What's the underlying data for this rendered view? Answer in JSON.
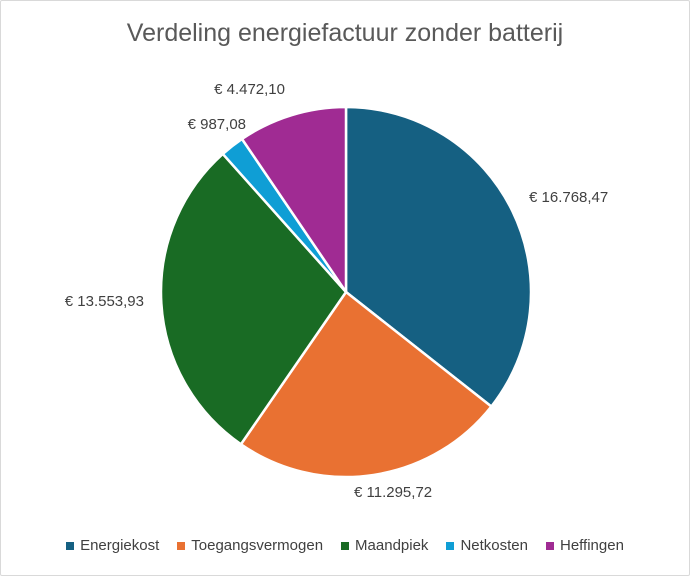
{
  "chart_data": {
    "type": "pie",
    "title": "Verdeling energiefactuur zonder batterij",
    "categories": [
      "Energiekost",
      "Toegangsvermogen",
      "Maandpiek",
      "Netkosten",
      "Heffingen"
    ],
    "values": [
      16768.47,
      11295.72,
      13553.93,
      987.08,
      4472.1
    ],
    "data_labels": [
      "€ 16.768,47",
      "€ 11.295,72",
      "€ 13.553,93",
      "€ 987,08",
      "€ 4.472,10"
    ],
    "colors": [
      "#156082",
      "#E97132",
      "#196B24",
      "#0F9ED5",
      "#A02B93"
    ],
    "legend_position": "bottom"
  }
}
